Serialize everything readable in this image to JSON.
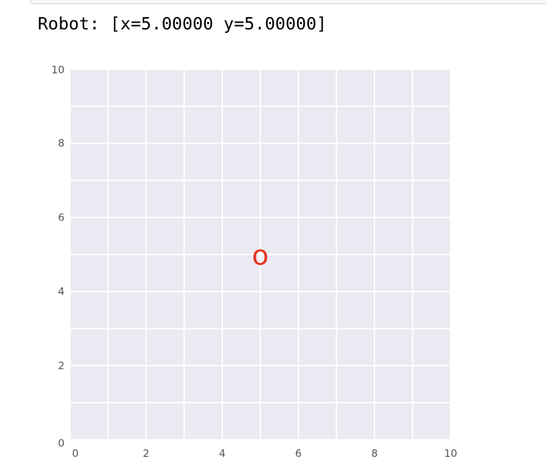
{
  "output": {
    "robot_text": "Robot: [x=5.00000 y=5.00000]"
  },
  "chart_data": {
    "type": "scatter",
    "xlim": [
      0,
      10
    ],
    "ylim": [
      0,
      10
    ],
    "x_ticks": [
      0,
      2,
      4,
      6,
      8,
      10
    ],
    "y_ticks": [
      0,
      2,
      4,
      6,
      8,
      10
    ],
    "grid": true,
    "gridlines_every": 1,
    "background_color": "#eaeaf2",
    "grid_color": "#ffffff",
    "points": [
      {
        "x": 5,
        "y": 5,
        "marker": "o",
        "color": "#e8331e"
      }
    ]
  }
}
